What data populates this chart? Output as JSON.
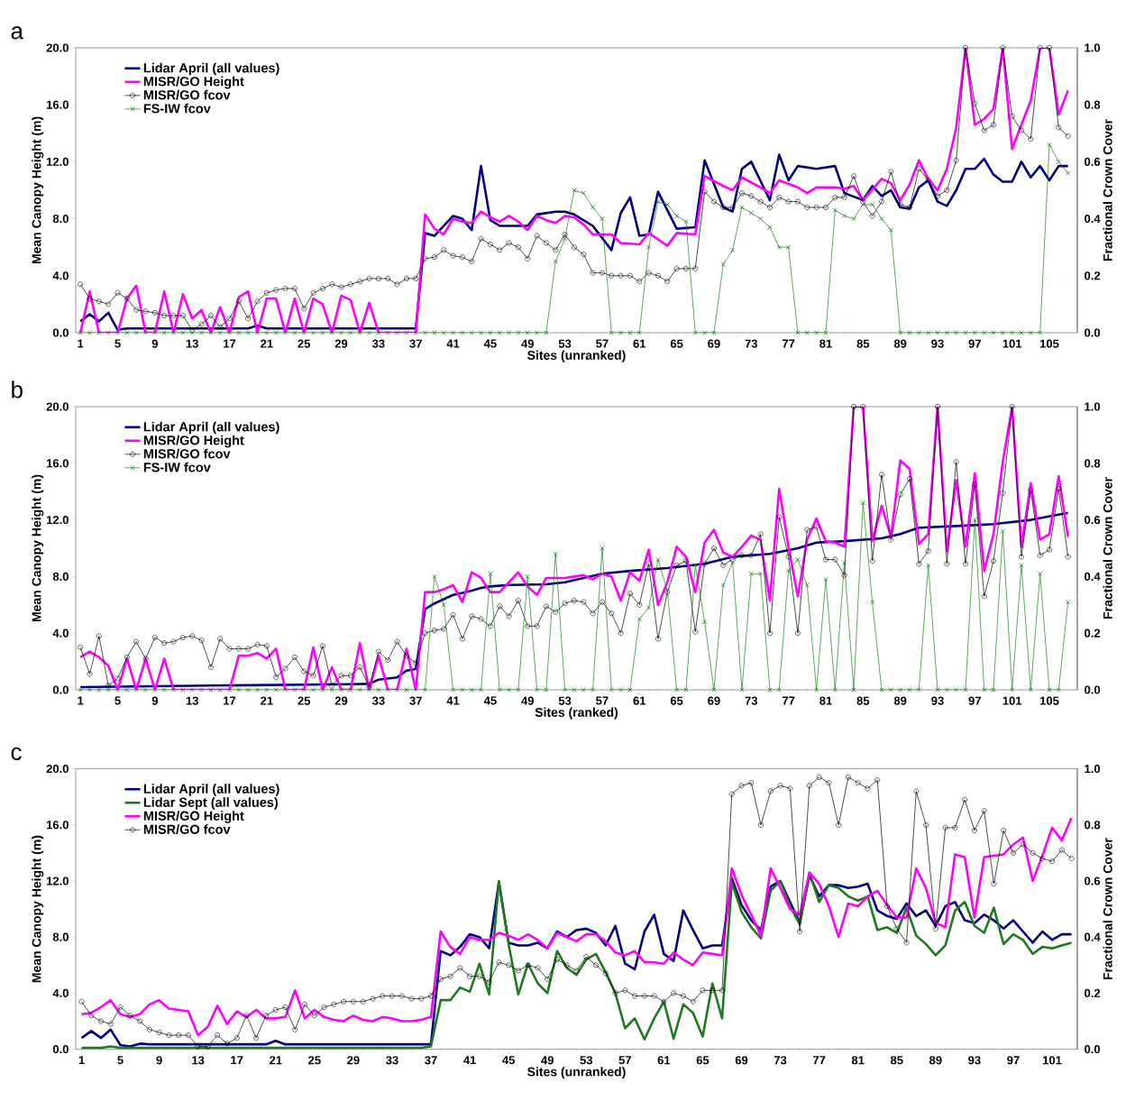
{
  "chart_data": [
    {
      "type": "line",
      "title": "a",
      "xlabel": "Sites (unranked)",
      "ylabel": "Mean Canopy Height (m)",
      "y2label": "Fractional Crown Cover",
      "legend": "top left",
      "xlim": [
        0.5,
        108
      ],
      "ylim": [
        0,
        20
      ],
      "y2lim": [
        0,
        1
      ],
      "xticks": [
        1,
        5,
        9,
        13,
        17,
        21,
        25,
        29,
        33,
        37,
        41,
        45,
        49,
        53,
        57,
        61,
        65,
        69,
        73,
        77,
        81,
        85,
        89,
        93,
        97,
        101,
        105
      ],
      "yticks": [
        {
          "value": 0,
          "label": "0.0"
        },
        {
          "value": 4,
          "label": "4.0"
        },
        {
          "value": 8,
          "label": "8.0"
        },
        {
          "value": 12,
          "label": "12.0"
        },
        {
          "value": 16,
          "label": "16.0"
        },
        {
          "value": 20,
          "label": "20.0"
        }
      ],
      "y2ticks": [
        {
          "value": 0,
          "label": "0.0"
        },
        {
          "value": 0.2,
          "label": "0.2"
        },
        {
          "value": 0.4,
          "label": "0.4"
        },
        {
          "value": 0.6,
          "label": "0.6"
        },
        {
          "value": 0.8,
          "label": "0.8"
        },
        {
          "value": 1,
          "label": "1.0"
        }
      ],
      "x": [
        1,
        2,
        3,
        4,
        5,
        6,
        7,
        8,
        9,
        10,
        11,
        12,
        13,
        14,
        15,
        16,
        17,
        18,
        19,
        20,
        21,
        22,
        23,
        24,
        25,
        26,
        27,
        28,
        29,
        30,
        31,
        32,
        33,
        34,
        35,
        36,
        37,
        38,
        39,
        40,
        41,
        42,
        43,
        44,
        45,
        46,
        47,
        48,
        49,
        50,
        51,
        52,
        53,
        54,
        55,
        56,
        57,
        58,
        59,
        60,
        61,
        62,
        63,
        64,
        65,
        66,
        67,
        68,
        69,
        70,
        71,
        72,
        73,
        74,
        75,
        76,
        77,
        78,
        79,
        80,
        81,
        82,
        83,
        84,
        85,
        86,
        87,
        88,
        89,
        90,
        91,
        92,
        93,
        94,
        95,
        96,
        97,
        98,
        99,
        100,
        101,
        102,
        103,
        104,
        105,
        106,
        107
      ],
      "series": [
        {
          "name": "Lidar April (all values)",
          "color": "#000080",
          "marker": "none",
          "x": [
            1,
            2,
            3,
            4,
            5,
            6,
            19,
            20,
            21,
            37,
            38,
            39,
            41,
            42,
            43,
            44,
            45,
            46,
            47,
            49,
            50,
            52,
            53,
            54,
            56,
            58,
            59,
            60,
            61,
            62,
            63,
            65,
            67,
            68,
            70,
            71,
            72,
            73,
            75,
            76,
            77,
            78,
            80,
            82,
            83,
            85,
            86,
            87,
            88,
            89,
            90,
            91,
            92,
            93,
            94,
            95,
            96,
            97,
            98,
            99,
            100,
            101,
            102,
            103,
            104,
            105,
            106,
            107
          ],
          "values": [
            0.8,
            1.3,
            0.8,
            1.4,
            0.2,
            0.3,
            0.3,
            0.5,
            0.3,
            0.3,
            7.0,
            6.8,
            8.2,
            8.0,
            7.2,
            11.7,
            7.9,
            7.5,
            7.5,
            7.5,
            8.3,
            8.5,
            8.5,
            8.3,
            7.5,
            5.8,
            8.4,
            9.5,
            6.8,
            6.9,
            9.9,
            7.3,
            7.4,
            12.1,
            8.8,
            8.5,
            11.5,
            12.0,
            9.3,
            12.5,
            10.7,
            11.7,
            11.5,
            11.7,
            9.8,
            9.3,
            10.3,
            9.6,
            10.0,
            8.8,
            8.7,
            10.2,
            10.7,
            9.2,
            8.9,
            10.0,
            11.5,
            11.5,
            12.2,
            11.1,
            10.6,
            10.6,
            12.0,
            10.9,
            11.7,
            10.7,
            11.7,
            11.7
          ]
        },
        {
          "name": "MISR/GO Height",
          "color": "#ff00ff",
          "marker": "none",
          "x": [
            1,
            2,
            3,
            4,
            5,
            6,
            7,
            8,
            9,
            10,
            11,
            12,
            13,
            14,
            15,
            16,
            17,
            18,
            19,
            20,
            21,
            22,
            23,
            24,
            25,
            26,
            27,
            28,
            29,
            30,
            31,
            32,
            33,
            37,
            38,
            39,
            40,
            41,
            42,
            43,
            44,
            45,
            46,
            47,
            48,
            49,
            50,
            51,
            52,
            53,
            54,
            55,
            56,
            58,
            59,
            61,
            62,
            64,
            65,
            67,
            68,
            70,
            71,
            72,
            74,
            75,
            76,
            78,
            79,
            80,
            82,
            83,
            84,
            85,
            87,
            88,
            89,
            90,
            91,
            92,
            93,
            94,
            95,
            96,
            97,
            98,
            99,
            100,
            101,
            102,
            103,
            104,
            105,
            106,
            107
          ],
          "values": [
            0,
            2.9,
            0,
            0,
            0,
            2.4,
            3.3,
            0,
            0,
            2.9,
            0,
            2.7,
            1.0,
            1.6,
            0,
            1.8,
            0,
            2.5,
            2.9,
            0,
            2.4,
            2.4,
            0,
            2.4,
            0,
            2.4,
            2.0,
            0,
            2.6,
            2.3,
            0,
            2.1,
            0,
            0,
            8.3,
            7.3,
            6.9,
            8.0,
            7.8,
            7.7,
            8.5,
            8.1,
            7.8,
            8.2,
            7.8,
            7.2,
            8.2,
            7.9,
            7.7,
            8.2,
            8.1,
            7.6,
            6.9,
            6.9,
            6.3,
            6.2,
            7.0,
            6.1,
            7.0,
            6.9,
            11.0,
            10.3,
            10.0,
            10.9,
            10.2,
            9.8,
            10.7,
            10.2,
            9.8,
            10.2,
            10.2,
            10.1,
            10.3,
            9.3,
            10.8,
            10.5,
            9.3,
            10.4,
            12.1,
            10.8,
            10.0,
            11.5,
            14.4,
            20,
            14.6,
            15.0,
            15.7,
            20,
            12.9,
            14.6,
            16.3,
            20,
            20,
            15.3,
            17.0
          ]
        },
        {
          "name": "MISR/GO fcov",
          "color": "#000000",
          "marker": "circle",
          "axis": "y2",
          "values": [
            0.17,
            0.12,
            0.11,
            0.1,
            0.14,
            0.12,
            0.08,
            0.075,
            0.07,
            0.06,
            0.06,
            0.06,
            0.01,
            0.03,
            0.06,
            0.02,
            0.05,
            0.11,
            0.05,
            0.11,
            0.14,
            0.15,
            0.155,
            0.155,
            0.085,
            0.14,
            0.155,
            0.17,
            0.16,
            0.17,
            0.18,
            0.19,
            0.19,
            0.19,
            0.17,
            0.19,
            0.19,
            0.26,
            0.265,
            0.29,
            0.27,
            0.265,
            0.25,
            0.33,
            0.31,
            0.29,
            0.315,
            0.3,
            0.26,
            0.34,
            0.315,
            0.29,
            0.345,
            0.3,
            0.275,
            0.21,
            0.21,
            0.2,
            0.2,
            0.2,
            0.18,
            0.21,
            0.2,
            0.18,
            0.225,
            0.225,
            0.225,
            0.495,
            0.46,
            0.44,
            0.44,
            0.49,
            0.48,
            0.46,
            0.44,
            0.475,
            0.46,
            0.46,
            0.44,
            0.44,
            0.44,
            0.475,
            0.475,
            0.55,
            0.46,
            0.41,
            0.46,
            0.565,
            0.45,
            0.44,
            0.575,
            0.535,
            0.48,
            0.5,
            0.605,
            1.0,
            0.805,
            0.71,
            0.73,
            1.0,
            0.76,
            0.71,
            0.68,
            1.0,
            1.0,
            0.72,
            0.69
          ]
        },
        {
          "name": "FS-IW fcov",
          "color": "#1b7f1b",
          "marker": "cross",
          "axis": "y2",
          "values": [
            0,
            0,
            0,
            0,
            0,
            0,
            0,
            0,
            0,
            0,
            0,
            0,
            0,
            0,
            0,
            0,
            0,
            0,
            0,
            0,
            0,
            0,
            0,
            0,
            0,
            0,
            0,
            0,
            0,
            0,
            0,
            0,
            0,
            0,
            0,
            0,
            0,
            0,
            0,
            0,
            0,
            0,
            0,
            0,
            0,
            0,
            0,
            0,
            0,
            0,
            0,
            0.25,
            0.33,
            0.5,
            0.49,
            0.44,
            0.4,
            0,
            0,
            0,
            0,
            0.3,
            0.46,
            0.45,
            0.41,
            0.39,
            0,
            0,
            0,
            0.24,
            0.29,
            0.44,
            0.42,
            0.4,
            0.37,
            0.3,
            0.3,
            0,
            0,
            0,
            0,
            0.43,
            0.41,
            0.4,
            0.45,
            0.45,
            0.4,
            0.36,
            0,
            0,
            0,
            0,
            0,
            0,
            0,
            0,
            0,
            0,
            0,
            0,
            0,
            0,
            0,
            0,
            0.66,
            0.6,
            0.56
          ]
        }
      ]
    },
    {
      "type": "line",
      "title": "b",
      "xlabel": "Sites (ranked)",
      "ylabel": "Mean Canopy Height (m)",
      "y2label": "Fractional Crown Cover",
      "legend": "top left",
      "xlim": [
        0.5,
        108
      ],
      "ylim": [
        0,
        20
      ],
      "y2lim": [
        0,
        1
      ],
      "xticks": [
        1,
        5,
        9,
        13,
        17,
        21,
        25,
        29,
        33,
        37,
        41,
        45,
        49,
        53,
        57,
        61,
        65,
        69,
        73,
        77,
        81,
        85,
        89,
        93,
        97,
        101,
        105
      ],
      "yticks": [
        {
          "value": 0,
          "label": "0.0"
        },
        {
          "value": 4,
          "label": "4.0"
        },
        {
          "value": 8,
          "label": "8.0"
        },
        {
          "value": 12,
          "label": "12.0"
        },
        {
          "value": 16,
          "label": "16.0"
        },
        {
          "value": 20,
          "label": "20.0"
        }
      ],
      "y2ticks": [
        {
          "value": 0,
          "label": "0.0"
        },
        {
          "value": 0.2,
          "label": "0.2"
        },
        {
          "value": 0.4,
          "label": "0.4"
        },
        {
          "value": 0.6,
          "label": "0.6"
        },
        {
          "value": 0.8,
          "label": "0.8"
        },
        {
          "value": 1,
          "label": "1.0"
        }
      ],
      "x": [
        1,
        2,
        3,
        4,
        5,
        6,
        7,
        8,
        9,
        10,
        11,
        12,
        13,
        14,
        15,
        16,
        17,
        18,
        19,
        20,
        21,
        22,
        23,
        24,
        25,
        26,
        27,
        28,
        29,
        30,
        31,
        32,
        33,
        34,
        35,
        36,
        37,
        38,
        39,
        40,
        41,
        42,
        43,
        44,
        45,
        46,
        47,
        48,
        49,
        50,
        51,
        52,
        53,
        54,
        55,
        56,
        57,
        58,
        59,
        60,
        61,
        62,
        63,
        64,
        65,
        66,
        67,
        68,
        69,
        70,
        71,
        72,
        73,
        74,
        75,
        76,
        77,
        78,
        79,
        80,
        81,
        82,
        83,
        84,
        85,
        86,
        87,
        88,
        89,
        90,
        91,
        92,
        93,
        94,
        95,
        96,
        97,
        98,
        99,
        100,
        101,
        102,
        103,
        104,
        105,
        106,
        107
      ],
      "series": [
        {
          "name": "Lidar April (all values)",
          "color": "#000080",
          "marker": "none",
          "x": [
            1,
            15,
            30,
            32,
            33,
            35,
            36,
            37,
            38,
            39,
            40,
            41,
            42,
            43,
            44,
            45,
            47,
            51,
            53,
            55,
            57,
            60,
            64,
            68,
            71,
            75,
            78,
            80,
            83,
            87,
            89,
            91,
            96,
            99,
            103,
            107
          ],
          "values": [
            0.19,
            0.3,
            0.4,
            0.42,
            0.72,
            0.88,
            1.35,
            1.46,
            5.7,
            6.1,
            6.4,
            6.7,
            6.85,
            7.0,
            7.2,
            7.3,
            7.4,
            7.45,
            7.6,
            7.9,
            8.2,
            8.4,
            8.6,
            8.9,
            9.4,
            9.6,
            10.0,
            10.4,
            10.5,
            10.7,
            11.0,
            11.45,
            11.6,
            11.7,
            12.0,
            12.5
          ]
        },
        {
          "name": "MISR/GO Height",
          "color": "#ff00ff",
          "marker": "none",
          "values": [
            2.3,
            2.7,
            2.3,
            1.7,
            0,
            2.2,
            0,
            2.2,
            0,
            2.2,
            0,
            0,
            0,
            0,
            0,
            0,
            0,
            2.4,
            2.4,
            2.6,
            2.2,
            2.9,
            0,
            0,
            0,
            3.0,
            0,
            1.6,
            0,
            0,
            3.3,
            0,
            2.4,
            0,
            0,
            2.9,
            0,
            6.9,
            6.9,
            7.1,
            7.4,
            6.2,
            8.3,
            7.9,
            6.9,
            6.9,
            7.6,
            8.3,
            7.3,
            6.7,
            7.9,
            7.9,
            7.9,
            8.0,
            8.1,
            7.8,
            8.2,
            8.0,
            6.3,
            8.3,
            7.7,
            9.9,
            6.0,
            7.6,
            10.1,
            9.4,
            6.9,
            10.4,
            11.3,
            9.7,
            9.4,
            10.1,
            10.9,
            10.6,
            6.3,
            14.2,
            10.1,
            6.6,
            10.6,
            12.1,
            10.5,
            10.4,
            10.1,
            20,
            20,
            10.5,
            13.0,
            10.8,
            16.2,
            15.6,
            10.3,
            11.0,
            20,
            9.8,
            14.8,
            10.1,
            15.3,
            8.4,
            11.0,
            16.1,
            20,
            10.1,
            14.6,
            10.6,
            11.0,
            15.1,
            10.8
          ]
        },
        {
          "name": "MISR/GO fcov",
          "color": "#000000",
          "marker": "circle",
          "axis": "y2",
          "values": [
            0.15,
            0.056,
            0.19,
            0.015,
            0.04,
            0.115,
            0.17,
            0.11,
            0.185,
            0.165,
            0.17,
            0.185,
            0.19,
            0.175,
            0.08,
            0.18,
            0.145,
            0.145,
            0.145,
            0.16,
            0.155,
            0.045,
            0.075,
            0.115,
            0.065,
            0.05,
            0.155,
            0.015,
            0.05,
            0.05,
            0.08,
            0.01,
            0.135,
            0.105,
            0.17,
            0.12,
            0.095,
            0.2,
            0.21,
            0.215,
            0.265,
            0.18,
            0.26,
            0.25,
            0.225,
            0.295,
            0.26,
            0.315,
            0.225,
            0.225,
            0.295,
            0.275,
            0.305,
            0.315,
            0.31,
            0.27,
            0.31,
            0.27,
            0.2,
            0.34,
            0.3,
            0.445,
            0.18,
            0.345,
            0.44,
            0.455,
            0.205,
            0.445,
            0.5,
            0.44,
            0.46,
            0.475,
            0.475,
            0.55,
            0.2,
            0.61,
            0.47,
            0.2,
            0.565,
            0.575,
            0.46,
            0.46,
            0.405,
            1.0,
            1.0,
            0.455,
            0.76,
            0.53,
            0.69,
            0.745,
            0.445,
            0.49,
            1.0,
            0.445,
            0.805,
            0.445,
            0.725,
            0.33,
            0.455,
            0.695,
            1.0,
            0.47,
            0.705,
            0.475,
            0.495,
            0.71,
            0.47
          ]
        },
        {
          "name": "FS-IW fcov",
          "color": "#1b7f1b",
          "marker": "cross",
          "axis": "y2",
          "values": [
            0,
            0,
            0,
            0,
            0,
            0,
            0,
            0,
            0,
            0,
            0,
            0,
            0,
            0,
            0,
            0,
            0,
            0,
            0,
            0,
            0,
            0,
            0,
            0,
            0,
            0,
            0,
            0,
            0,
            0,
            0,
            0,
            0,
            0,
            0,
            0,
            0,
            0,
            0.4,
            0.3,
            0,
            0,
            0,
            0,
            0.41,
            0,
            0,
            0,
            0.4,
            0,
            0,
            0.48,
            0,
            0,
            0,
            0,
            0.5,
            0,
            0,
            0,
            0.25,
            0.29,
            0.46,
            0.35,
            0,
            0,
            0.44,
            0.24,
            0,
            0.37,
            0.45,
            0,
            0.41,
            0.41,
            0,
            0,
            0.42,
            0.46,
            0.37,
            0,
            0.39,
            0,
            0.45,
            0,
            0.66,
            0.31,
            0,
            0,
            0,
            0,
            0,
            0.44,
            0,
            0,
            0,
            0,
            0.6,
            0,
            0,
            0.56,
            0,
            0.44,
            0,
            0.41,
            0,
            0,
            0.31
          ]
        }
      ]
    },
    {
      "type": "line",
      "title": "c",
      "xlabel": "Sites (unranked)",
      "ylabel": "Mean Canopy Height (m)",
      "y2label": "Fractional Crown Cover",
      "legend": "top left",
      "xlim": [
        0.4,
        103.6
      ],
      "ylim": [
        0,
        20
      ],
      "y2lim": [
        0,
        1
      ],
      "xticks": [
        1,
        5,
        9,
        13,
        17,
        21,
        25,
        29,
        33,
        37,
        41,
        45,
        49,
        53,
        57,
        61,
        65,
        69,
        73,
        77,
        81,
        85,
        89,
        93,
        97,
        101
      ],
      "yticks": [
        {
          "value": 0,
          "label": "0.0"
        },
        {
          "value": 4,
          "label": "4.0"
        },
        {
          "value": 8,
          "label": "8.0"
        },
        {
          "value": 12,
          "label": "12.0"
        },
        {
          "value": 16,
          "label": "16.0"
        },
        {
          "value": 20,
          "label": "20.0"
        }
      ],
      "y2ticks": [
        {
          "value": 0,
          "label": "0.0"
        },
        {
          "value": 0.2,
          "label": "0.2"
        },
        {
          "value": 0.4,
          "label": "0.4"
        },
        {
          "value": 0.6,
          "label": "0.6"
        },
        {
          "value": 0.8,
          "label": "0.8"
        },
        {
          "value": 1,
          "label": "1.0"
        }
      ],
      "x": [
        1,
        2,
        3,
        4,
        5,
        6,
        7,
        8,
        9,
        10,
        11,
        12,
        13,
        14,
        15,
        16,
        17,
        18,
        19,
        20,
        21,
        22,
        23,
        24,
        25,
        26,
        27,
        28,
        29,
        30,
        31,
        32,
        33,
        34,
        35,
        36,
        37,
        38,
        39,
        40,
        41,
        42,
        43,
        44,
        45,
        46,
        47,
        48,
        49,
        50,
        51,
        52,
        53,
        54,
        55,
        56,
        57,
        58,
        59,
        60,
        61,
        62,
        63,
        64,
        65,
        66,
        67,
        68,
        69,
        70,
        71,
        72,
        73,
        74,
        75,
        76,
        77,
        78,
        79,
        80,
        81,
        82,
        83,
        84,
        85,
        86,
        87,
        88,
        89,
        90,
        91,
        92,
        93,
        94,
        95,
        96,
        97,
        98,
        99,
        100,
        101,
        102,
        103
      ],
      "series": [
        {
          "name": "Lidar April (all values)",
          "color": "#000080",
          "marker": "none",
          "values": [
            0.8,
            1.3,
            0.8,
            1.4,
            0.3,
            0.2,
            0.4,
            0.35,
            0.35,
            0.35,
            0.35,
            0.35,
            0.35,
            0.35,
            0.35,
            0.35,
            0.35,
            0.35,
            0.35,
            0.35,
            0.6,
            0.35,
            0.35,
            0.35,
            0.35,
            0.35,
            0.35,
            0.35,
            0.35,
            0.35,
            0.35,
            0.35,
            0.35,
            0.35,
            0.35,
            0.35,
            0.35,
            7.0,
            6.7,
            7.3,
            8.2,
            8.0,
            7.2,
            11.9,
            7.6,
            7.4,
            7.4,
            7.6,
            7.2,
            8.4,
            8.0,
            8.5,
            8.6,
            8.3,
            7.4,
            8.8,
            6.1,
            5.7,
            8.4,
            9.6,
            6.8,
            6.3,
            9.9,
            8.5,
            7.2,
            7.4,
            7.4,
            12.2,
            10.3,
            9.2,
            8.5,
            11.6,
            12.0,
            10.5,
            9.0,
            12.4,
            10.9,
            11.7,
            11.7,
            11.5,
            11.6,
            11.8,
            9.9,
            9.5,
            9.3,
            10.4,
            9.5,
            9.9,
            8.8,
            10.2,
            10.5,
            9.2,
            9.0,
            9.6,
            9.2,
            8.6,
            9.2,
            8.4,
            7.6,
            8.4,
            7.8,
            8.2,
            8.2
          ]
        },
        {
          "name": "Lidar Sept (all values)",
          "color": "#1f7a1f",
          "marker": "none",
          "values": [
            0.1,
            0.1,
            0.1,
            0.2,
            0.1,
            0.1,
            0.1,
            0.1,
            0.1,
            0.1,
            0.1,
            0.1,
            0.1,
            0.1,
            0.1,
            0.1,
            0.1,
            0.1,
            0.1,
            0.1,
            0.1,
            0.1,
            0.1,
            0.1,
            0.1,
            0.1,
            0.1,
            0.1,
            0.1,
            0.1,
            0.1,
            0.1,
            0.1,
            0.1,
            0.1,
            0.1,
            0.2,
            3.5,
            3.5,
            4.4,
            4.1,
            6.1,
            3.9,
            12.0,
            7.5,
            3.9,
            6.1,
            4.7,
            4.0,
            7.0,
            5.8,
            5.3,
            6.4,
            6.8,
            5.5,
            4.0,
            1.5,
            2.2,
            0.7,
            2.2,
            3.4,
            0.75,
            3.2,
            2.6,
            0.9,
            4.7,
            2.2,
            11.9,
            9.8,
            8.7,
            7.9,
            11.3,
            12.0,
            10.2,
            8.9,
            12.6,
            10.5,
            11.7,
            11.5,
            10.9,
            10.6,
            10.9,
            8.5,
            8.7,
            8.3,
            10.1,
            8.1,
            7.5,
            6.7,
            7.4,
            9.9,
            10.5,
            8.8,
            8.3,
            10.1,
            7.5,
            8.2,
            7.8,
            6.8,
            7.3,
            7.2,
            7.4,
            7.6
          ]
        },
        {
          "name": "MISR/GO Height",
          "color": "#ff00ff",
          "marker": "none",
          "values": [
            2.5,
            2.6,
            3.0,
            3.5,
            2.5,
            2.3,
            2.5,
            3.2,
            3.5,
            2.9,
            2.8,
            2.7,
            1.0,
            1.6,
            3.1,
            1.8,
            2.7,
            2.3,
            2.8,
            2.2,
            2.2,
            2.3,
            4.2,
            2.2,
            2.8,
            2.3,
            2.1,
            2.0,
            2.4,
            2.1,
            2.0,
            2.3,
            2.2,
            2.0,
            2.0,
            2.1,
            2.3,
            8.4,
            7.3,
            6.8,
            8.0,
            7.8,
            7.8,
            8.3,
            8.1,
            7.8,
            8.2,
            7.8,
            7.2,
            8.3,
            8.0,
            7.7,
            8.2,
            8.2,
            7.7,
            6.9,
            6.7,
            7.0,
            6.2,
            6.2,
            6.1,
            6.9,
            6.4,
            6.0,
            6.9,
            6.8,
            6.7,
            12.9,
            11.0,
            9.6,
            8.1,
            12.9,
            11.5,
            10.0,
            9.6,
            12.6,
            11.8,
            10.2,
            8.0,
            10.4,
            10.2,
            10.9,
            11.3,
            10.3,
            9.4,
            9.4,
            12.9,
            11.5,
            9.0,
            8.7,
            13.9,
            13.7,
            9.4,
            13.7,
            13.8,
            13.9,
            14.6,
            15.1,
            12.0,
            13.8,
            15.8,
            14.9,
            16.5
          ]
        },
        {
          "name": "MISR/GO fcov",
          "color": "#000000",
          "marker": "circle",
          "axis": "y2",
          "values": [
            0.17,
            0.12,
            0.1,
            0.09,
            0.15,
            0.12,
            0.1,
            0.07,
            0.06,
            0.05,
            0.05,
            0.05,
            0.01,
            0.01,
            0.05,
            0.02,
            0.04,
            0.12,
            0.04,
            0.12,
            0.14,
            0.15,
            0.07,
            0.16,
            0.12,
            0.15,
            0.16,
            0.17,
            0.17,
            0.17,
            0.18,
            0.19,
            0.19,
            0.19,
            0.18,
            0.18,
            0.19,
            0.25,
            0.26,
            0.29,
            0.26,
            0.26,
            0.24,
            0.31,
            0.3,
            0.28,
            0.3,
            0.29,
            0.25,
            0.32,
            0.3,
            0.28,
            0.33,
            0.3,
            0.27,
            0.2,
            0.21,
            0.19,
            0.19,
            0.19,
            0.17,
            0.2,
            0.19,
            0.17,
            0.21,
            0.21,
            0.21,
            0.91,
            0.94,
            0.95,
            0.8,
            0.92,
            0.94,
            0.93,
            0.42,
            0.94,
            0.97,
            0.95,
            0.8,
            0.97,
            0.95,
            0.93,
            0.96,
            0.51,
            0.43,
            0.38,
            0.92,
            0.8,
            0.43,
            0.79,
            0.79,
            0.89,
            0.78,
            0.85,
            0.59,
            0.78,
            0.7,
            0.73,
            0.7,
            0.68,
            0.67,
            0.71,
            0.68
          ]
        }
      ]
    }
  ]
}
